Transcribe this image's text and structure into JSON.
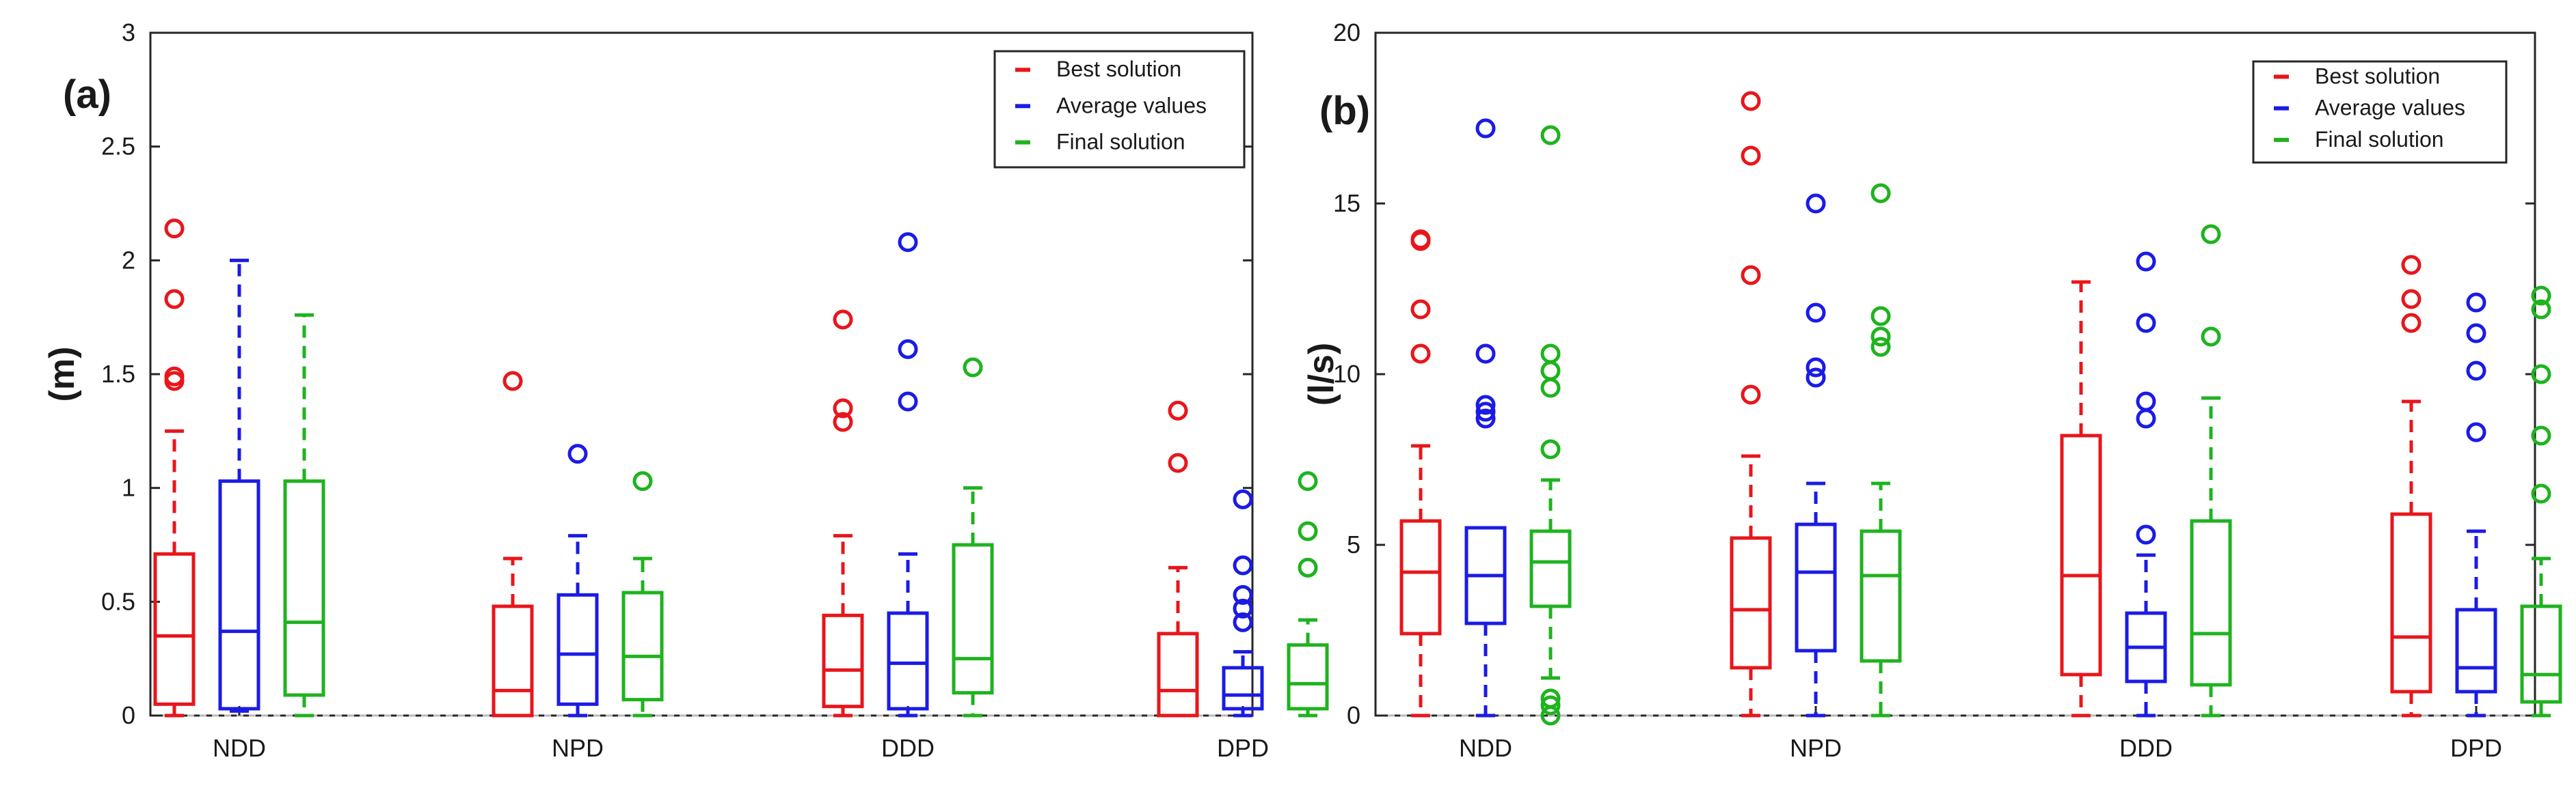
{
  "colors": {
    "best": "#e8161b",
    "average": "#1b1be6",
    "final": "#1fb31f",
    "axis": "#262626",
    "zero_line": "#b8b8b8"
  },
  "legend_labels": [
    "Best solution",
    "Average values",
    "Final solution"
  ],
  "chart_data": [
    {
      "type": "box",
      "panel_label": "(a)",
      "ylabel": "(m)",
      "ylim": [
        0,
        3
      ],
      "yticks": [
        0,
        0.5,
        1,
        1.5,
        2,
        2.5,
        3
      ],
      "ytick_labels": [
        "0",
        "0.5",
        "1",
        "1.5",
        "2",
        "2.5",
        "3"
      ],
      "categories": [
        "NDD",
        "NPD",
        "DDD",
        "DPD"
      ],
      "legend_position": "top-right",
      "series": [
        {
          "name": "Best solution",
          "color": "#e8161b",
          "boxes": [
            {
              "whisker_low": 0.0,
              "q1": 0.05,
              "median": 0.35,
              "q3": 0.71,
              "whisker_high": 1.25,
              "outliers": [
                1.47,
                1.49,
                1.83,
                2.14
              ]
            },
            {
              "whisker_low": 0.0,
              "q1": 0.0,
              "median": 0.11,
              "q3": 0.48,
              "whisker_high": 0.69,
              "outliers": [
                1.47
              ]
            },
            {
              "whisker_low": 0.0,
              "q1": 0.04,
              "median": 0.2,
              "q3": 0.44,
              "whisker_high": 0.79,
              "outliers": [
                1.29,
                1.35,
                1.74
              ]
            },
            {
              "whisker_low": 0.0,
              "q1": 0.0,
              "median": 0.11,
              "q3": 0.36,
              "whisker_high": 0.65,
              "outliers": [
                1.11,
                1.34
              ]
            }
          ]
        },
        {
          "name": "Average values",
          "color": "#1b1be6",
          "boxes": [
            {
              "whisker_low": 0.02,
              "q1": 0.03,
              "median": 0.37,
              "q3": 1.03,
              "whisker_high": 2.0,
              "outliers": []
            },
            {
              "whisker_low": 0.0,
              "q1": 0.05,
              "median": 0.27,
              "q3": 0.53,
              "whisker_high": 0.79,
              "outliers": [
                1.15
              ]
            },
            {
              "whisker_low": 0.0,
              "q1": 0.03,
              "median": 0.23,
              "q3": 0.45,
              "whisker_high": 0.71,
              "outliers": [
                1.38,
                1.61,
                2.08
              ]
            },
            {
              "whisker_low": 0.0,
              "q1": 0.03,
              "median": 0.09,
              "q3": 0.21,
              "whisker_high": 0.28,
              "outliers": [
                0.41,
                0.47,
                0.53,
                0.66,
                0.95
              ]
            }
          ]
        },
        {
          "name": "Final solution",
          "color": "#1fb31f",
          "boxes": [
            {
              "whisker_low": 0.0,
              "q1": 0.09,
              "median": 0.41,
              "q3": 1.03,
              "whisker_high": 1.76,
              "outliers": []
            },
            {
              "whisker_low": 0.0,
              "q1": 0.07,
              "median": 0.26,
              "q3": 0.54,
              "whisker_high": 0.69,
              "outliers": [
                1.03
              ]
            },
            {
              "whisker_low": 0.0,
              "q1": 0.1,
              "median": 0.25,
              "q3": 0.75,
              "whisker_high": 1.0,
              "outliers": [
                1.53
              ]
            },
            {
              "whisker_low": 0.0,
              "q1": 0.03,
              "median": 0.14,
              "q3": 0.31,
              "whisker_high": 0.42,
              "outliers": [
                0.65,
                0.81,
                1.03
              ]
            }
          ]
        }
      ]
    },
    {
      "type": "box",
      "panel_label": "(b)",
      "ylabel": "(l/s)",
      "ylim": [
        0,
        20
      ],
      "yticks": [
        0,
        5,
        10,
        15,
        20
      ],
      "ytick_labels": [
        "0",
        "5",
        "10",
        "15",
        "20"
      ],
      "categories": [
        "NDD",
        "NPD",
        "DDD",
        "DPD"
      ],
      "legend_position": "top-right",
      "series": [
        {
          "name": "Best solution",
          "color": "#e8161b",
          "boxes": [
            {
              "whisker_low": 0.0,
              "q1": 2.4,
              "median": 4.2,
              "q3": 5.7,
              "whisker_high": 7.9,
              "outliers": [
                10.6,
                11.9,
                13.9,
                13.95
              ]
            },
            {
              "whisker_low": 0.0,
              "q1": 1.4,
              "median": 3.1,
              "q3": 5.2,
              "whisker_high": 7.6,
              "outliers": [
                9.4,
                12.9,
                16.4,
                18.0
              ]
            },
            {
              "whisker_low": 0.0,
              "q1": 1.2,
              "median": 4.1,
              "q3": 8.2,
              "whisker_high": 12.7,
              "outliers": []
            },
            {
              "whisker_low": 0.0,
              "q1": 0.7,
              "median": 2.3,
              "q3": 5.9,
              "whisker_high": 9.2,
              "outliers": [
                11.5,
                12.2,
                13.2
              ]
            }
          ]
        },
        {
          "name": "Average values",
          "color": "#1b1be6",
          "boxes": [
            {
              "whisker_low": 0.0,
              "q1": 2.7,
              "median": 4.1,
              "q3": 5.5,
              "whisker_high": 5.5,
              "outliers": [
                8.7,
                8.9,
                9.1,
                10.6,
                17.2
              ]
            },
            {
              "whisker_low": 0.0,
              "q1": 1.9,
              "median": 4.2,
              "q3": 5.6,
              "whisker_high": 6.8,
              "outliers": [
                9.9,
                10.2,
                11.8,
                15.0
              ]
            },
            {
              "whisker_low": 0.0,
              "q1": 1.0,
              "median": 2.0,
              "q3": 3.0,
              "whisker_high": 4.7,
              "outliers": [
                5.3,
                8.7,
                9.2,
                11.5,
                13.3
              ]
            },
            {
              "whisker_low": 0.0,
              "q1": 0.7,
              "median": 1.4,
              "q3": 3.1,
              "whisker_high": 5.4,
              "outliers": [
                8.3,
                10.1,
                11.2,
                12.1
              ]
            }
          ]
        },
        {
          "name": "Final solution",
          "color": "#1fb31f",
          "boxes": [
            {
              "whisker_low": 1.1,
              "q1": 3.2,
              "median": 4.5,
              "q3": 5.4,
              "whisker_high": 6.9,
              "outliers": [
                0.0,
                0.3,
                0.5,
                7.8,
                9.6,
                10.1,
                10.6,
                17.0
              ]
            },
            {
              "whisker_low": 0.0,
              "q1": 1.6,
              "median": 4.1,
              "q3": 5.4,
              "whisker_high": 6.8,
              "outliers": [
                10.8,
                11.1,
                11.7,
                15.3
              ]
            },
            {
              "whisker_low": 0.0,
              "q1": 0.9,
              "median": 2.4,
              "q3": 5.7,
              "whisker_high": 9.3,
              "outliers": [
                11.1,
                14.1
              ]
            },
            {
              "whisker_low": 0.0,
              "q1": 0.4,
              "median": 1.2,
              "q3": 3.2,
              "whisker_high": 4.6,
              "outliers": [
                6.5,
                8.2,
                10.0,
                11.9,
                12.3
              ]
            }
          ]
        }
      ]
    }
  ]
}
